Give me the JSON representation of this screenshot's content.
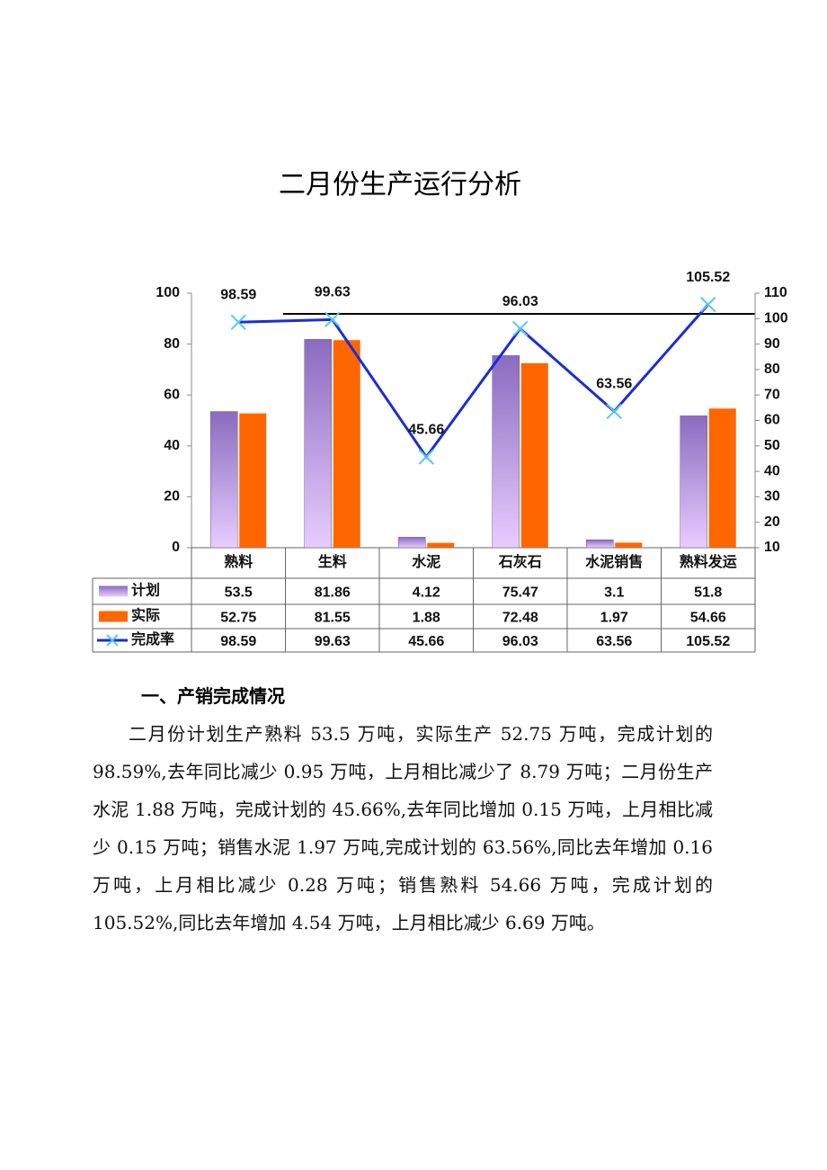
{
  "document": {
    "title": "二月份生产运行分析",
    "section_heading": "一、产销完成情况",
    "paragraph": "二月份计划生产熟料 53.5 万吨，实际生产 52.75 万吨，完成计划的 98.59%,去年同比减少 0.95 万吨，上月相比减少了 8.79 万吨；二月份生产水泥 1.88 万吨，完成计划的 45.66%,去年同比增加 0.15 万吨，上月相比减少 0.15 万吨；销售水泥 1.97 万吨,完成计划的 63.56%,同比去年增加 0.16 万吨，上月相比减少 0.28 万吨；销售熟料 54.66 万吨，完成计划的 105.52%,同比去年增加 4.54 万吨，上月相比减少 6.69 万吨。"
  },
  "chart_data": {
    "type": "bar",
    "categories": [
      "熟料",
      "生料",
      "水泥",
      "石灰石",
      "水泥销售",
      "熟料发运"
    ],
    "series": [
      {
        "name": "计划",
        "color": "#8a6bbf",
        "values": [
          53.5,
          81.86,
          4.12,
          75.47,
          3.1,
          51.8
        ]
      },
      {
        "name": "实际",
        "color": "#ff6600",
        "values": [
          52.75,
          81.55,
          1.88,
          72.48,
          1.97,
          54.66
        ]
      },
      {
        "name": "完成率",
        "color": "#1a2ed6",
        "type": "line",
        "axis": "y2",
        "values": [
          98.59,
          99.63,
          45.66,
          96.03,
          63.56,
          105.52
        ]
      }
    ],
    "ylim": [
      0,
      100
    ],
    "yticks": [
      0,
      20,
      40,
      60,
      80,
      100
    ],
    "y2lim": [
      10,
      110
    ],
    "y2ticks": [
      10,
      20,
      30,
      40,
      50,
      60,
      70,
      80,
      90,
      100,
      110
    ]
  }
}
